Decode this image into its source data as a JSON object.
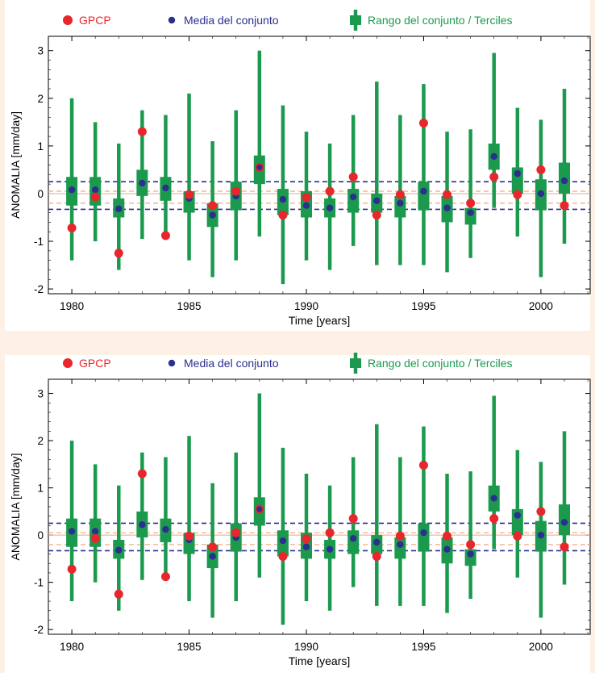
{
  "chart_data": [
    {
      "type": "box-and-points",
      "xlabel": "Time [years]",
      "ylabel": "ANOMALIA [mm/day]",
      "xlim": [
        1979,
        2002.1
      ],
      "ylim": [
        -2.1,
        3.3
      ],
      "xticks": [
        1980,
        1985,
        1990,
        1995,
        2000
      ],
      "yticks": [
        -2,
        -1,
        0,
        1,
        2,
        3
      ],
      "legend": {
        "position": "top",
        "gpcp_label": "GPCP",
        "mean_label": "Media del conjunto",
        "range_label": "Rango del conjunto / Terciles"
      },
      "reference_lines": {
        "zero_line": 0.0,
        "upper_tercile": 0.25,
        "lower_tercile": -0.33,
        "inner_upper": 0.05,
        "inner_lower": -0.2
      },
      "colors": {
        "gpcp": "#e8262b",
        "mean": "#2b2f8f",
        "range": "#1b9a4e",
        "tercile_line": "#2b2f8f",
        "zero_line": "#f4a582"
      },
      "years": [
        1980,
        1981,
        1982,
        1983,
        1984,
        1985,
        1986,
        1987,
        1988,
        1989,
        1990,
        1991,
        1992,
        1993,
        1994,
        1995,
        1996,
        1997,
        1998,
        1999,
        2000,
        2001
      ],
      "range_min": [
        -1.4,
        -1.0,
        -1.6,
        -0.95,
        -0.85,
        -1.4,
        -1.75,
        -1.4,
        -0.9,
        -1.9,
        -1.4,
        -1.6,
        -1.1,
        -1.5,
        -1.5,
        -1.5,
        -1.65,
        -1.35,
        -0.3,
        -0.9,
        -1.75,
        -1.05
      ],
      "range_max": [
        2.0,
        1.5,
        1.05,
        1.75,
        1.65,
        2.1,
        1.1,
        1.75,
        3.0,
        1.85,
        1.3,
        1.05,
        1.65,
        2.35,
        1.65,
        2.3,
        1.3,
        1.35,
        2.95,
        1.8,
        1.55,
        2.2
      ],
      "tercile_low": [
        -0.25,
        -0.25,
        -0.5,
        -0.05,
        -0.15,
        -0.4,
        -0.7,
        -0.35,
        0.2,
        -0.45,
        -0.5,
        -0.5,
        -0.4,
        -0.4,
        -0.5,
        -0.35,
        -0.6,
        -0.65,
        0.5,
        0.0,
        -0.35,
        0.0
      ],
      "tercile_high": [
        0.35,
        0.35,
        -0.1,
        0.5,
        0.35,
        0.05,
        -0.2,
        0.25,
        0.8,
        0.1,
        0.05,
        -0.1,
        0.1,
        0.0,
        -0.05,
        0.25,
        -0.05,
        -0.3,
        1.05,
        0.55,
        0.3,
        0.65
      ],
      "ensemble_mean": [
        0.08,
        0.08,
        -0.32,
        0.22,
        0.12,
        -0.1,
        -0.45,
        -0.05,
        0.55,
        -0.12,
        -0.25,
        -0.3,
        -0.07,
        -0.15,
        -0.2,
        0.05,
        -0.3,
        -0.4,
        0.78,
        0.42,
        0.0,
        0.27
      ],
      "gpcp": [
        -0.72,
        -0.07,
        -1.25,
        1.3,
        -0.88,
        -0.02,
        -0.25,
        0.05,
        0.55,
        -0.45,
        -0.08,
        0.05,
        0.35,
        -0.45,
        -0.02,
        1.48,
        -0.02,
        -0.2,
        0.35,
        -0.02,
        0.5,
        -0.25
      ]
    },
    {
      "type": "box-and-points",
      "xlabel": "Time [years]",
      "ylabel": "ANOMALIA [mm/day]",
      "xlim": [
        1979,
        2002.1
      ],
      "ylim": [
        -2.1,
        3.3
      ],
      "xticks": [
        1980,
        1985,
        1990,
        1995,
        2000
      ],
      "yticks": [
        -2,
        -1,
        0,
        1,
        2,
        3
      ],
      "legend": {
        "position": "top",
        "gpcp_label": "GPCP",
        "mean_label": "Media del conjunto",
        "range_label": "Rango del conjunto / Terciles"
      },
      "reference_lines": {
        "zero_line": 0.0,
        "upper_tercile": 0.25,
        "lower_tercile": -0.33,
        "inner_upper": 0.05,
        "inner_lower": -0.2
      },
      "colors": {
        "gpcp": "#e8262b",
        "mean": "#2b2f8f",
        "range": "#1b9a4e",
        "tercile_line": "#2b2f8f",
        "zero_line": "#f4a582"
      },
      "years": [
        1980,
        1981,
        1982,
        1983,
        1984,
        1985,
        1986,
        1987,
        1988,
        1989,
        1990,
        1991,
        1992,
        1993,
        1994,
        1995,
        1996,
        1997,
        1998,
        1999,
        2000,
        2001
      ],
      "range_min": [
        -1.4,
        -1.0,
        -1.6,
        -0.95,
        -0.85,
        -1.4,
        -1.75,
        -1.4,
        -0.9,
        -1.9,
        -1.4,
        -1.6,
        -1.1,
        -1.5,
        -1.5,
        -1.5,
        -1.65,
        -1.35,
        -0.3,
        -0.9,
        -1.75,
        -1.05
      ],
      "range_max": [
        2.0,
        1.5,
        1.05,
        1.75,
        1.65,
        2.1,
        1.1,
        1.75,
        3.0,
        1.85,
        1.3,
        1.05,
        1.65,
        2.35,
        1.65,
        2.3,
        1.3,
        1.35,
        2.95,
        1.8,
        1.55,
        2.2
      ],
      "tercile_low": [
        -0.25,
        -0.25,
        -0.5,
        -0.05,
        -0.15,
        -0.4,
        -0.7,
        -0.35,
        0.2,
        -0.45,
        -0.5,
        -0.5,
        -0.4,
        -0.4,
        -0.5,
        -0.35,
        -0.6,
        -0.65,
        0.5,
        0.0,
        -0.35,
        0.0
      ],
      "tercile_high": [
        0.35,
        0.35,
        -0.1,
        0.5,
        0.35,
        0.05,
        -0.2,
        0.25,
        0.8,
        0.1,
        0.05,
        -0.1,
        0.1,
        0.0,
        -0.05,
        0.25,
        -0.05,
        -0.3,
        1.05,
        0.55,
        0.3,
        0.65
      ],
      "ensemble_mean": [
        0.08,
        0.08,
        -0.32,
        0.22,
        0.12,
        -0.1,
        -0.45,
        -0.05,
        0.55,
        -0.12,
        -0.25,
        -0.3,
        -0.07,
        -0.15,
        -0.2,
        0.05,
        -0.3,
        -0.4,
        0.78,
        0.42,
        0.0,
        0.27
      ],
      "gpcp": [
        -0.72,
        -0.07,
        -1.25,
        1.3,
        -0.88,
        -0.02,
        -0.25,
        0.05,
        0.55,
        -0.45,
        -0.08,
        0.05,
        0.35,
        -0.45,
        -0.02,
        1.48,
        -0.02,
        -0.2,
        0.35,
        -0.02,
        0.5,
        -0.25
      ]
    }
  ]
}
